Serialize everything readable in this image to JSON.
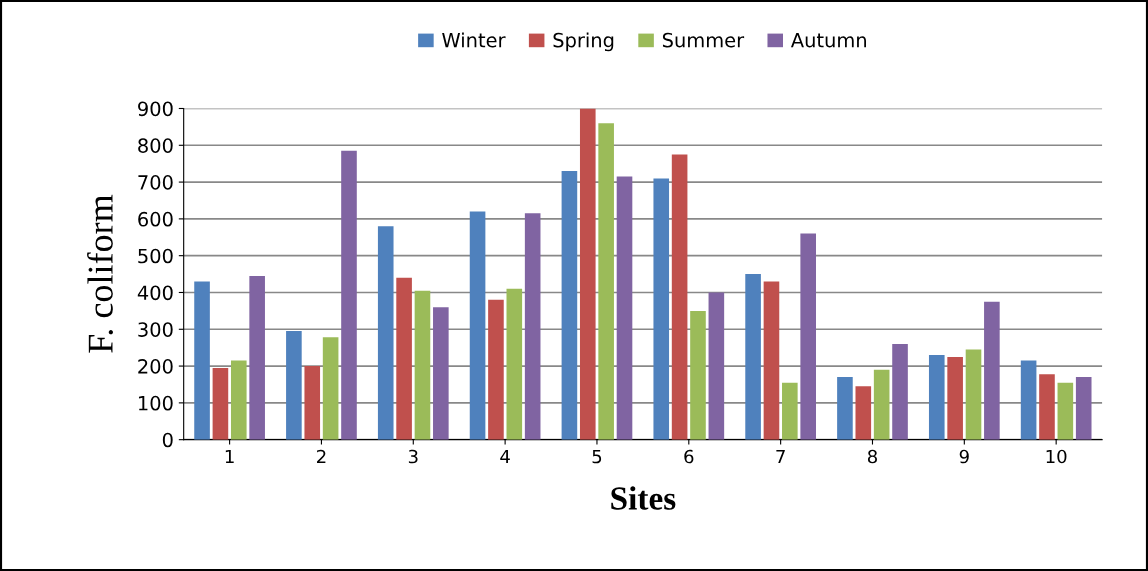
{
  "chart_data": {
    "type": "bar",
    "xlabel": "Sites",
    "ylabel": "F. coliform",
    "categories": [
      "1",
      "2",
      "3",
      "4",
      "5",
      "6",
      "7",
      "8",
      "9",
      "10"
    ],
    "series": [
      {
        "name": "Winter",
        "color": "#4f81bd",
        "values": [
          430,
          295,
          580,
          620,
          730,
          710,
          450,
          170,
          230,
          215
        ]
      },
      {
        "name": "Spring",
        "color": "#c0504d",
        "values": [
          195,
          200,
          440,
          380,
          900,
          775,
          430,
          145,
          225,
          178
        ]
      },
      {
        "name": "Summer",
        "color": "#9bbb59",
        "values": [
          215,
          278,
          405,
          410,
          860,
          350,
          155,
          190,
          245,
          155
        ]
      },
      {
        "name": "Autumn",
        "color": "#8064a2",
        "values": [
          445,
          785,
          360,
          615,
          715,
          400,
          560,
          260,
          375,
          170
        ]
      }
    ],
    "ylim": [
      0,
      900
    ],
    "yticks": [
      0,
      100,
      200,
      300,
      400,
      500,
      600,
      700,
      800,
      900
    ],
    "grid": "y",
    "legend": "top"
  }
}
